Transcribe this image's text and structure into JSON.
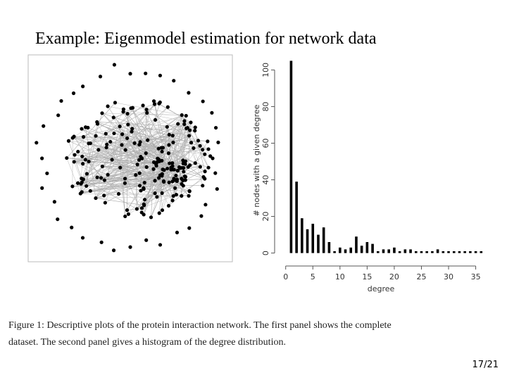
{
  "title": "Example: Eigenmodel estimation for network data",
  "chart_data": {
    "type": "bar",
    "xlabel": "degree",
    "ylabel": "# nodes with a given degree",
    "x": [
      1,
      2,
      3,
      4,
      5,
      6,
      7,
      8,
      9,
      10,
      11,
      12,
      13,
      14,
      15,
      16,
      17,
      18,
      19,
      20,
      21,
      22,
      23,
      24,
      25,
      26,
      27,
      28,
      29,
      30,
      31,
      32,
      33,
      34,
      35,
      36
    ],
    "values": [
      105,
      39,
      19,
      13,
      16,
      10,
      14,
      6,
      1,
      3,
      2,
      3,
      9,
      4,
      6,
      5,
      1,
      2,
      2,
      3,
      1,
      2,
      2,
      1,
      1,
      1,
      1,
      2,
      1,
      1,
      1,
      1,
      1,
      1,
      1,
      1
    ],
    "color": "#000000",
    "xlim": [
      -1,
      37
    ],
    "xticks": [
      0,
      5,
      10,
      15,
      20,
      25,
      30,
      35
    ],
    "ylim": [
      -4,
      104
    ],
    "yticks": [
      0,
      20,
      40,
      60,
      80,
      100
    ]
  },
  "caption": [
    "Figure 1: Descriptive plots of the protein interaction network. The first panel shows the complete",
    "dataset. The second panel gives a histogram of the degree distribution."
  ],
  "page_number": "17/21"
}
